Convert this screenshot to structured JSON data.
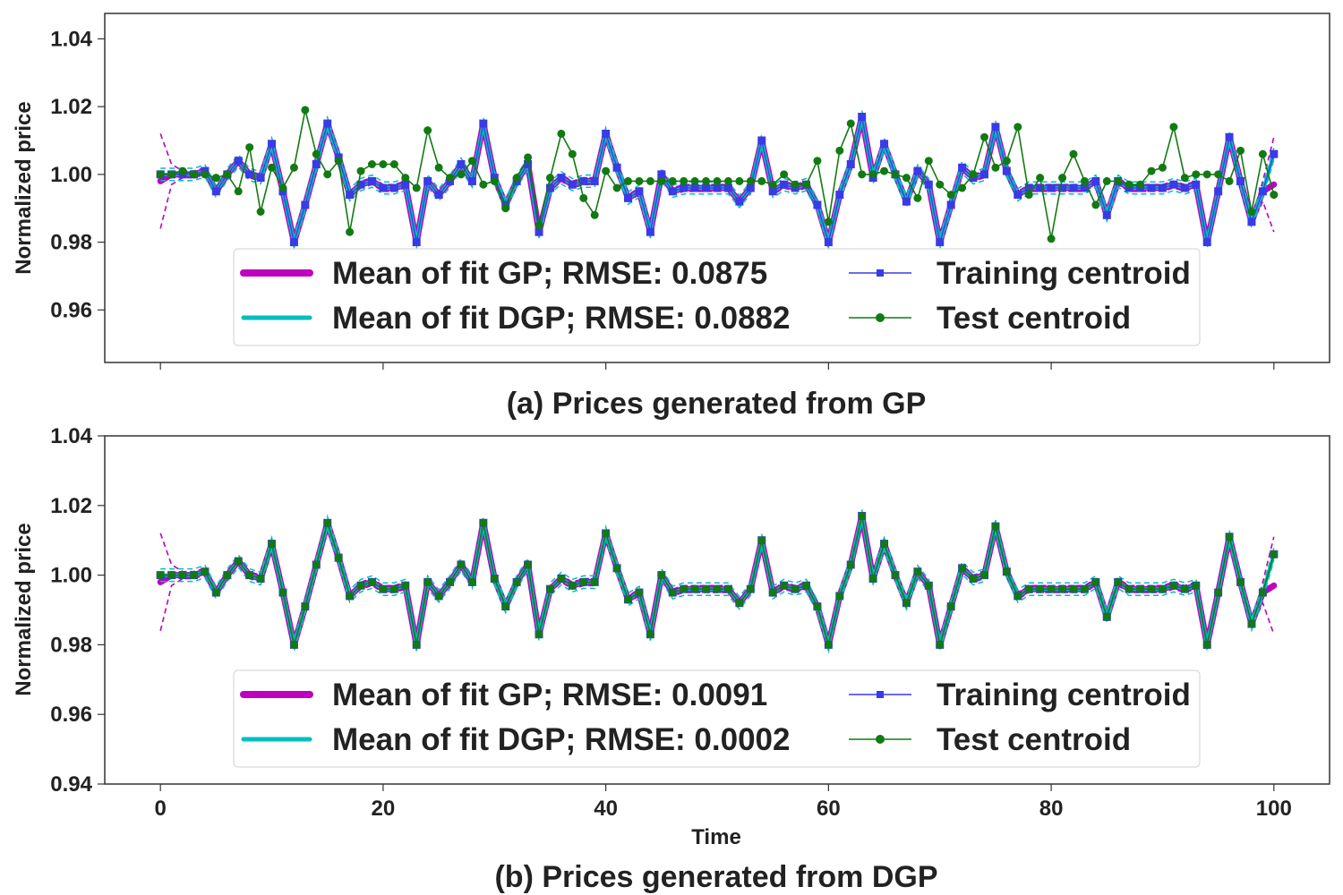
{
  "chart_data": [
    {
      "type": "line",
      "id": "a",
      "caption": "(a) Prices generated from GP",
      "xlabel": "",
      "ylabel": "Normalized price",
      "xlim": [
        -5,
        105
      ],
      "ylim": [
        0.9445,
        1.0475
      ],
      "xticks": [
        0,
        20,
        40,
        60,
        80,
        100
      ],
      "xticklabels": [],
      "yticks": [
        0.96,
        0.98,
        1.0,
        1.02,
        1.04
      ],
      "yticklabels": [
        "0.96",
        "0.98",
        "1.00",
        "1.02",
        "1.04"
      ],
      "legend": {
        "location": "lower center",
        "ncol": 2,
        "entries": [
          {
            "key": "gp",
            "label": "Mean of fit GP; RMSE: 0.0875"
          },
          {
            "key": "train",
            "label": "Training centroid"
          },
          {
            "key": "dgp",
            "label": "Mean of fit DGP; RMSE: 0.0882"
          },
          {
            "key": "test",
            "label": "Test centroid"
          }
        ]
      },
      "x_training": [
        0,
        1,
        2,
        3,
        4,
        5,
        6,
        7,
        8,
        9,
        10,
        11,
        12,
        13,
        14,
        15,
        16,
        17,
        18,
        19,
        20,
        21,
        22,
        23,
        24,
        25,
        26,
        27,
        28,
        29,
        30,
        31,
        32,
        33,
        34,
        35,
        36,
        37,
        38,
        39,
        40,
        41,
        42,
        43,
        44,
        45,
        46,
        47,
        48,
        49,
        50,
        51,
        52,
        53,
        54,
        55,
        56,
        57,
        58,
        59,
        60,
        61,
        62,
        63,
        64,
        65,
        66,
        67,
        68,
        69,
        70,
        71,
        72,
        73,
        74,
        75,
        76,
        77,
        78,
        79,
        80,
        81,
        82,
        83,
        84,
        85,
        86,
        87,
        88,
        89,
        90,
        91,
        92,
        93,
        94,
        95,
        96,
        97,
        98,
        99,
        100
      ],
      "training_centroid": [
        1.0,
        1.0,
        1.0,
        1.0,
        1.001,
        0.995,
        1.0,
        1.004,
        1.0,
        0.999,
        1.009,
        0.995,
        0.98,
        0.991,
        1.003,
        1.015,
        1.005,
        0.994,
        0.997,
        0.998,
        0.996,
        0.996,
        0.997,
        0.98,
        0.998,
        0.994,
        0.998,
        1.003,
        0.998,
        1.015,
        0.999,
        0.991,
        0.998,
        1.003,
        0.983,
        0.996,
        0.999,
        0.997,
        0.998,
        0.998,
        1.012,
        1.002,
        0.993,
        0.995,
        0.983,
        1.0,
        0.995,
        0.996,
        0.996,
        0.996,
        0.996,
        0.996,
        0.992,
        0.996,
        1.01,
        0.995,
        0.997,
        0.996,
        0.997,
        0.991,
        0.98,
        0.994,
        1.003,
        1.017,
        0.999,
        1.009,
        1.0,
        0.992,
        1.001,
        0.997,
        0.98,
        0.991,
        1.002,
        0.999,
        1.0,
        1.014,
        1.001,
        0.994,
        0.996,
        0.996,
        0.996,
        0.996,
        0.996,
        0.996,
        0.998,
        0.988,
        0.998,
        0.996,
        0.996,
        0.996,
        0.996,
        0.997,
        0.996,
        0.997,
        0.98,
        0.995,
        1.011,
        0.998,
        0.986,
        0.995,
        1.006
      ],
      "x_test": [
        0,
        1,
        2,
        3,
        4,
        5,
        6,
        7,
        8,
        9,
        10,
        11,
        12,
        13,
        14,
        15,
        16,
        17,
        18,
        19,
        20,
        21,
        22,
        23,
        24,
        25,
        26,
        27,
        28,
        29,
        30,
        31,
        32,
        33,
        34,
        35,
        36,
        37,
        38,
        39,
        40,
        41,
        42,
        43,
        44,
        45,
        46,
        47,
        48,
        49,
        50,
        51,
        52,
        53,
        54,
        55,
        56,
        57,
        58,
        59,
        60,
        61,
        62,
        63,
        64,
        65,
        66,
        67,
        68,
        69,
        70,
        71,
        72,
        73,
        74,
        75,
        76,
        77,
        78,
        79,
        80,
        81,
        82,
        83,
        84,
        85,
        86,
        87,
        88,
        89,
        90,
        91,
        92,
        93,
        94,
        95,
        96,
        97,
        98,
        99,
        100
      ],
      "test_centroid": [
        1.0,
        1.0,
        1.001,
        1.0,
        1.0,
        0.999,
        1.0,
        0.995,
        1.008,
        0.989,
        1.002,
        0.996,
        1.002,
        1.019,
        1.006,
        1.0,
        1.004,
        0.983,
        1.001,
        1.003,
        1.003,
        1.003,
        0.999,
        0.996,
        1.013,
        1.002,
        0.999,
        1.0,
        1.004,
        0.997,
        0.998,
        0.99,
        0.999,
        1.005,
        0.985,
        0.999,
        1.012,
        1.006,
        0.993,
        0.988,
        1.001,
        0.996,
        0.998,
        0.998,
        0.998,
        0.998,
        0.998,
        0.998,
        0.998,
        0.998,
        0.998,
        0.998,
        0.998,
        0.998,
        0.998,
        0.997,
        1.0,
        0.997,
        0.997,
        1.004,
        0.986,
        1.007,
        1.015,
        1.0,
        1.0,
        1.001,
        1.0,
        0.999,
        0.993,
        1.004,
        0.997,
        0.994,
        0.996,
        1.0,
        1.011,
        1.002,
        1.004,
        1.014,
        0.994,
        0.999,
        0.981,
        0.999,
        1.006,
        0.998,
        0.991,
        0.998,
        0.998,
        0.997,
        0.997,
        1.001,
        1.002,
        1.014,
        0.999,
        1.0,
        1.0,
        1.0,
        0.998,
        1.007,
        0.989,
        1.006,
        0.994
      ],
      "gp_mean_endpoints": {
        "start": 0.998,
        "end": 0.997
      },
      "gp_band_halfwidth_at_ends": 0.014
    },
    {
      "type": "line",
      "id": "b",
      "caption": "(b) Prices generated from DGP",
      "xlabel": "Time",
      "ylabel": "Normalized price",
      "xlim": [
        -5,
        105
      ],
      "ylim": [
        0.94,
        1.04
      ],
      "xticks": [
        0,
        20,
        40,
        60,
        80,
        100
      ],
      "xticklabels": [
        "0",
        "20",
        "40",
        "60",
        "80",
        "100"
      ],
      "yticks": [
        0.94,
        0.96,
        0.98,
        1.0,
        1.02,
        1.04
      ],
      "yticklabels": [
        "0.94",
        "0.96",
        "0.98",
        "1.00",
        "1.02",
        "1.04"
      ],
      "legend": {
        "location": "lower center",
        "ncol": 2,
        "entries": [
          {
            "key": "gp",
            "label": "Mean of fit GP; RMSE: 0.0091"
          },
          {
            "key": "train",
            "label": "Training centroid"
          },
          {
            "key": "dgp",
            "label": "Mean of fit DGP; RMSE: 0.0002"
          },
          {
            "key": "test",
            "label": "Test centroid"
          }
        ]
      },
      "x_training": [
        0,
        1,
        2,
        3,
        4,
        5,
        6,
        7,
        8,
        9,
        10,
        11,
        12,
        13,
        14,
        15,
        16,
        17,
        18,
        19,
        20,
        21,
        22,
        23,
        24,
        25,
        26,
        27,
        28,
        29,
        30,
        31,
        32,
        33,
        34,
        35,
        36,
        37,
        38,
        39,
        40,
        41,
        42,
        43,
        44,
        45,
        46,
        47,
        48,
        49,
        50,
        51,
        52,
        53,
        54,
        55,
        56,
        57,
        58,
        59,
        60,
        61,
        62,
        63,
        64,
        65,
        66,
        67,
        68,
        69,
        70,
        71,
        72,
        73,
        74,
        75,
        76,
        77,
        78,
        79,
        80,
        81,
        82,
        83,
        84,
        85,
        86,
        87,
        88,
        89,
        90,
        91,
        92,
        93,
        94,
        95,
        96,
        97,
        98,
        99,
        100
      ],
      "training_centroid": [
        1.0,
        1.0,
        1.0,
        1.0,
        1.001,
        0.995,
        1.0,
        1.004,
        1.0,
        0.999,
        1.009,
        0.995,
        0.98,
        0.991,
        1.003,
        1.015,
        1.005,
        0.994,
        0.997,
        0.998,
        0.996,
        0.996,
        0.997,
        0.98,
        0.998,
        0.994,
        0.998,
        1.003,
        0.998,
        1.015,
        0.999,
        0.991,
        0.998,
        1.003,
        0.983,
        0.996,
        0.999,
        0.997,
        0.998,
        0.998,
        1.012,
        1.002,
        0.993,
        0.995,
        0.983,
        1.0,
        0.995,
        0.996,
        0.996,
        0.996,
        0.996,
        0.996,
        0.992,
        0.996,
        1.01,
        0.995,
        0.997,
        0.996,
        0.997,
        0.991,
        0.98,
        0.994,
        1.003,
        1.017,
        0.999,
        1.009,
        1.0,
        0.992,
        1.001,
        0.997,
        0.98,
        0.991,
        1.002,
        0.999,
        1.0,
        1.014,
        1.001,
        0.994,
        0.996,
        0.996,
        0.996,
        0.996,
        0.996,
        0.996,
        0.998,
        0.988,
        0.998,
        0.996,
        0.996,
        0.996,
        0.996,
        0.997,
        0.996,
        0.997,
        0.98,
        0.995,
        1.011,
        0.998,
        0.986,
        0.995,
        1.006
      ],
      "x_test": [
        0,
        1,
        2,
        3,
        4,
        5,
        6,
        7,
        8,
        9,
        10,
        11,
        12,
        13,
        14,
        15,
        16,
        17,
        18,
        19,
        20,
        21,
        22,
        23,
        24,
        25,
        26,
        27,
        28,
        29,
        30,
        31,
        32,
        33,
        34,
        35,
        36,
        37,
        38,
        39,
        40,
        41,
        42,
        43,
        44,
        45,
        46,
        47,
        48,
        49,
        50,
        51,
        52,
        53,
        54,
        55,
        56,
        57,
        58,
        59,
        60,
        61,
        62,
        63,
        64,
        65,
        66,
        67,
        68,
        69,
        70,
        71,
        72,
        73,
        74,
        75,
        76,
        77,
        78,
        79,
        80,
        81,
        82,
        83,
        84,
        85,
        86,
        87,
        88,
        89,
        90,
        91,
        92,
        93,
        94,
        95,
        96,
        97,
        98,
        99,
        100
      ],
      "test_centroid": [
        1.0,
        1.0,
        1.0,
        1.0,
        1.001,
        0.995,
        1.0,
        1.004,
        1.0,
        0.999,
        1.009,
        0.995,
        0.98,
        0.991,
        1.003,
        1.015,
        1.005,
        0.994,
        0.997,
        0.998,
        0.996,
        0.996,
        0.997,
        0.98,
        0.998,
        0.994,
        0.998,
        1.003,
        0.998,
        1.015,
        0.999,
        0.991,
        0.998,
        1.003,
        0.983,
        0.996,
        0.999,
        0.997,
        0.998,
        0.998,
        1.012,
        1.002,
        0.993,
        0.995,
        0.983,
        1.0,
        0.995,
        0.996,
        0.996,
        0.996,
        0.996,
        0.996,
        0.992,
        0.996,
        1.01,
        0.995,
        0.997,
        0.996,
        0.997,
        0.991,
        0.98,
        0.994,
        1.003,
        1.017,
        0.999,
        1.009,
        1.0,
        0.992,
        1.001,
        0.997,
        0.98,
        0.991,
        1.002,
        0.999,
        1.0,
        1.014,
        1.001,
        0.994,
        0.996,
        0.996,
        0.996,
        0.996,
        0.996,
        0.996,
        0.998,
        0.988,
        0.998,
        0.996,
        0.996,
        0.996,
        0.996,
        0.997,
        0.996,
        0.997,
        0.98,
        0.995,
        1.011,
        0.998,
        0.986,
        0.995,
        1.006
      ],
      "gp_mean_endpoints": {
        "start": 0.998,
        "end": 0.997
      },
      "gp_band_halfwidth_at_ends": 0.014
    }
  ],
  "colors": {
    "gp": "#bf00bf",
    "dgp": "#00bfbf",
    "train": "#3a3ae6",
    "test": "#127a12",
    "axes": "#333333",
    "text": "#222222",
    "legend_border": "#d9d9d9"
  },
  "icons": {
    "train_marker": "square-marker",
    "test_marker": "circle-marker"
  }
}
